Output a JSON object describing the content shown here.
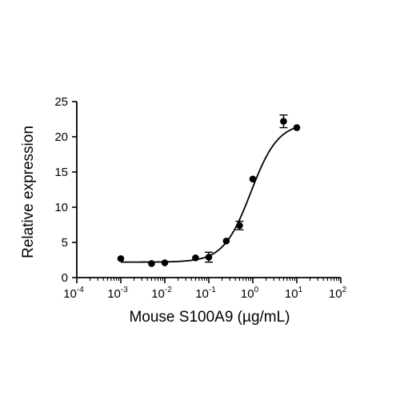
{
  "chart_data": {
    "type": "scatter",
    "xlabel": "Mouse S100A9 (µg/mL)",
    "ylabel": "Relative expression",
    "x_scale": "log",
    "xlim": [
      0.0001,
      100
    ],
    "ylim": [
      0,
      25
    ],
    "x_ticks": [
      {
        "base": "10",
        "exp": "-4",
        "value": 0.0001
      },
      {
        "base": "10",
        "exp": "-3",
        "value": 0.001
      },
      {
        "base": "10",
        "exp": "-2",
        "value": 0.01
      },
      {
        "base": "10",
        "exp": "-1",
        "value": 0.1
      },
      {
        "base": "10",
        "exp": "0",
        "value": 1
      },
      {
        "base": "10",
        "exp": "1",
        "value": 10
      },
      {
        "base": "10",
        "exp": "2",
        "value": 100
      }
    ],
    "y_ticks": [
      0,
      5,
      10,
      15,
      20,
      25
    ],
    "grid": false,
    "legend": "none",
    "points": [
      {
        "x": 0.001,
        "y": 2.7,
        "err": 0
      },
      {
        "x": 0.005,
        "y": 2.0,
        "err": 0
      },
      {
        "x": 0.01,
        "y": 2.1,
        "err": 0
      },
      {
        "x": 0.05,
        "y": 2.8,
        "err": 0
      },
      {
        "x": 0.1,
        "y": 2.9,
        "err": 0.7
      },
      {
        "x": 0.25,
        "y": 5.2,
        "err": 0
      },
      {
        "x": 0.5,
        "y": 7.4,
        "err": 0.6
      },
      {
        "x": 1,
        "y": 14.0,
        "err": 0
      },
      {
        "x": 5,
        "y": 22.2,
        "err": 0.9
      },
      {
        "x": 10,
        "y": 21.3,
        "err": 0
      }
    ],
    "fit_curve": {
      "model": "four-parameter logistic",
      "bottom": 2.2,
      "top": 22.0,
      "ec50": 0.9,
      "hill": 1.4
    },
    "colors": {
      "marker": "#000000",
      "line": "#000000",
      "axis": "#000000"
    }
  }
}
